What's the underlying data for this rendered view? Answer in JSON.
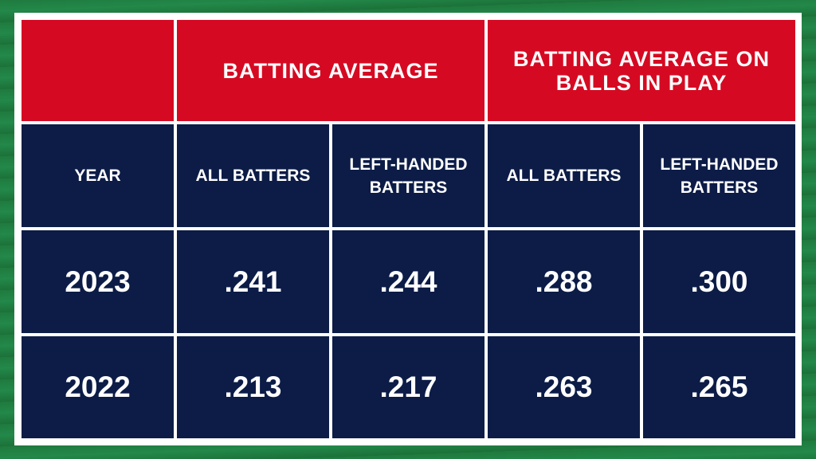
{
  "table": {
    "group_headers": [
      "BATTING AVERAGE",
      "BATTING AVERAGE ON BALLS IN PLAY"
    ],
    "column_headers": [
      "YEAR",
      "ALL BATTERS",
      "LEFT-HANDED BATTERS",
      "ALL BATTERS",
      "LEFT-HANDED BATTERS"
    ],
    "rows": [
      [
        "2023",
        ".241",
        ".244",
        ".288",
        ".300"
      ],
      [
        "2022",
        ".213",
        ".217",
        ".263",
        ".265"
      ]
    ]
  }
}
